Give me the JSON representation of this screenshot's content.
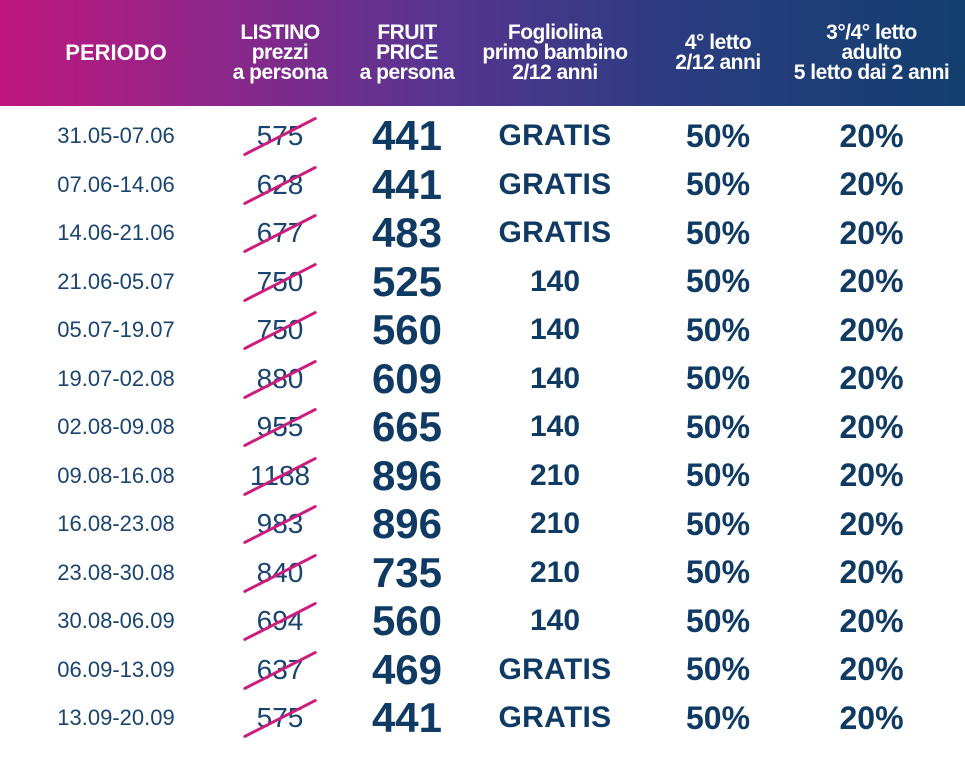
{
  "header": {
    "period": "PERIODO",
    "listino": "LISTINO\nprezzi\na persona",
    "fruit": "FRUIT\nPRICE\na persona",
    "child": "Fogliolina\nprimo bambino\n2/12 anni",
    "fourth": "4° letto\n2/12 anni",
    "adult": "3°/4° letto\nadulto\n5 letto dai 2 anni"
  },
  "colors": {
    "header_gradient_start": "#c0177f",
    "header_gradient_end": "#123f6e",
    "text": "#0f3a63",
    "strike": "#cc1d7e"
  },
  "rows": [
    {
      "period": "31.05-07.06",
      "listino": "575",
      "fruit": "441",
      "child": "GRATIS",
      "fourth": "50%",
      "adult": "20%"
    },
    {
      "period": "07.06-14.06",
      "listino": "628",
      "fruit": "441",
      "child": "GRATIS",
      "fourth": "50%",
      "adult": "20%"
    },
    {
      "period": "14.06-21.06",
      "listino": "677",
      "fruit": "483",
      "child": "GRATIS",
      "fourth": "50%",
      "adult": "20%"
    },
    {
      "period": "21.06-05.07",
      "listino": "750",
      "fruit": "525",
      "child": "140",
      "fourth": "50%",
      "adult": "20%"
    },
    {
      "period": "05.07-19.07",
      "listino": "750",
      "fruit": "560",
      "child": "140",
      "fourth": "50%",
      "adult": "20%"
    },
    {
      "period": "19.07-02.08",
      "listino": "880",
      "fruit": "609",
      "child": "140",
      "fourth": "50%",
      "adult": "20%"
    },
    {
      "period": "02.08-09.08",
      "listino": "955",
      "fruit": "665",
      "child": "140",
      "fourth": "50%",
      "adult": "20%"
    },
    {
      "period": "09.08-16.08",
      "listino": "1188",
      "fruit": "896",
      "child": "210",
      "fourth": "50%",
      "adult": "20%"
    },
    {
      "period": "16.08-23.08",
      "listino": "983",
      "fruit": "896",
      "child": "210",
      "fourth": "50%",
      "adult": "20%"
    },
    {
      "period": "23.08-30.08",
      "listino": "840",
      "fruit": "735",
      "child": "210",
      "fourth": "50%",
      "adult": "20%"
    },
    {
      "period": "30.08-06.09",
      "listino": "694",
      "fruit": "560",
      "child": "140",
      "fourth": "50%",
      "adult": "20%"
    },
    {
      "period": "06.09-13.09",
      "listino": "637",
      "fruit": "469",
      "child": "GRATIS",
      "fourth": "50%",
      "adult": "20%"
    },
    {
      "period": "13.09-20.09",
      "listino": "575",
      "fruit": "441",
      "child": "GRATIS",
      "fourth": "50%",
      "adult": "20%"
    }
  ]
}
